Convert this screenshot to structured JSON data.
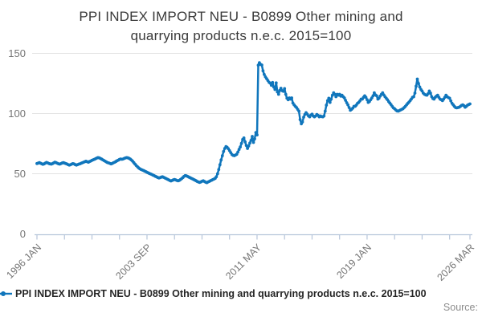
{
  "title": {
    "line1": "PPI INDEX IMPORT NEU - B0899 Other mining and",
    "line2": "quarrying products n.e.c. 2015=100"
  },
  "legend": {
    "label": "PPI INDEX IMPORT NEU - B0899 Other mining and quarrying products n.e.c. 2015=100"
  },
  "source": {
    "label": "Source:"
  },
  "colors": {
    "line": "#1076bc",
    "axis": "#b6c5da",
    "grid": "#e3e3e3",
    "tick_text": "#757575",
    "title_text": "#3a3a3a",
    "legend_text": "#262626",
    "source_text": "#8c8c8c"
  },
  "chart_data": {
    "type": "line",
    "title": "PPI INDEX IMPORT NEU - B0899 Other mining and quarrying products n.e.c. 2015=100",
    "xlabel": "",
    "ylabel": "",
    "frequency": "monthly",
    "x_start": "1996 JAN",
    "x_end": "2026 MAR",
    "ylim": [
      0,
      150
    ],
    "y_ticks": [
      0,
      50,
      100,
      150
    ],
    "grid": "horizontal-only",
    "legend_position": "bottom-left",
    "x_tick_labels": [
      {
        "label": "1996 JAN",
        "month": 0
      },
      {
        "label": "2003 SEP",
        "month": 92
      },
      {
        "label": "2011 MAY",
        "month": 184
      },
      {
        "label": "2019 JAN",
        "month": 276
      },
      {
        "label": "2026 MAR",
        "month": 362
      }
    ],
    "minor_tick_months": [
      0,
      23,
      46,
      69,
      92,
      115,
      138,
      161,
      184,
      207,
      230,
      253,
      276,
      299,
      322,
      345,
      362
    ],
    "values": [
      58.5,
      58.8,
      59.2,
      58.7,
      58.3,
      57.9,
      58.2,
      58.8,
      59.4,
      59.0,
      58.5,
      58.2,
      58.0,
      58.4,
      59.0,
      59.6,
      59.2,
      58.7,
      58.3,
      58.0,
      58.4,
      58.9,
      59.3,
      58.9,
      58.5,
      58.1,
      57.6,
      57.2,
      57.5,
      58.0,
      58.4,
      58.1,
      57.6,
      57.2,
      57.6,
      58.0,
      58.3,
      58.7,
      59.1,
      59.6,
      60.0,
      60.4,
      60.0,
      59.6,
      60.1,
      60.6,
      61.1,
      61.6,
      62.0,
      62.5,
      63.0,
      63.4,
      63.2,
      62.7,
      62.2,
      61.6,
      61.0,
      60.4,
      59.8,
      59.3,
      59.0,
      58.6,
      58.2,
      58.6,
      59.1,
      59.6,
      60.2,
      60.8,
      61.3,
      61.9,
      62.3,
      62.0,
      62.3,
      62.7,
      63.1,
      63.4,
      63.2,
      62.8,
      62.2,
      61.4,
      60.4,
      59.2,
      58.0,
      56.8,
      55.8,
      54.9,
      54.1,
      53.6,
      53.1,
      52.7,
      52.2,
      51.7,
      51.2,
      50.7,
      50.2,
      49.8,
      49.4,
      48.9,
      48.4,
      47.9,
      47.4,
      46.9,
      46.5,
      46.8,
      47.2,
      47.5,
      47.0,
      46.5,
      46.0,
      45.5,
      45.0,
      44.4,
      44.0,
      44.4,
      44.9,
      45.3,
      44.9,
      44.4,
      44.1,
      44.5,
      45.2,
      46.0,
      46.9,
      47.8,
      48.5,
      48.2,
      47.7,
      47.2,
      46.7,
      46.2,
      45.7,
      45.2,
      44.7,
      44.2,
      43.6,
      43.1,
      42.8,
      43.2,
      43.7,
      44.1,
      43.6,
      43.0,
      42.6,
      43.1,
      43.6,
      44.1,
      44.6,
      45.1,
      45.6,
      46.2,
      47.5,
      50.0,
      53.5,
      57.5,
      61.5,
      65.0,
      68.5,
      71.0,
      72.6,
      72.0,
      70.8,
      69.3,
      67.6,
      66.0,
      65.3,
      65.0,
      65.6,
      66.2,
      68.0,
      70.2,
      72.3,
      75.2,
      78.5,
      79.7,
      76.5,
      73.5,
      71.0,
      73.0,
      75.5,
      77.7,
      81.0,
      76.0,
      79.0,
      84.3,
      82.3,
      140.2,
      142.2,
      140.8,
      140.3,
      135.5,
      132.5,
      130.5,
      129.0,
      127.5,
      126.0,
      125.3,
      123.5,
      125.8,
      122.0,
      120.0,
      125.5,
      118.0,
      116.0,
      119.3,
      121.0,
      119.0,
      118.5,
      120.7,
      116.0,
      112.7,
      111.5,
      113.0,
      112.0,
      113.0,
      108.7,
      107.3,
      106.0,
      105.0,
      103.5,
      102.0,
      95.0,
      91.5,
      93.0,
      97.0,
      99.3,
      100.7,
      99.5,
      98.0,
      97.3,
      98.7,
      99.5,
      98.0,
      97.3,
      98.0,
      99.3,
      98.5,
      97.3,
      98.0,
      97.5,
      97.3,
      98.0,
      102.0,
      107.0,
      110.7,
      112.7,
      109.3,
      112.0,
      115.3,
      117.3,
      116.0,
      114.0,
      116.0,
      115.3,
      116.0,
      114.5,
      115.3,
      114.0,
      113.0,
      111.0,
      109.0,
      107.3,
      105.0,
      102.7,
      103.5,
      104.5,
      106.0,
      106.0,
      107.0,
      108.5,
      109.3,
      110.5,
      112.0,
      112.0,
      113.5,
      114.7,
      113.5,
      111.5,
      109.3,
      110.0,
      111.5,
      113.0,
      114.7,
      117.3,
      115.5,
      114.7,
      112.0,
      112.7,
      114.5,
      116.0,
      117.3,
      115.5,
      114.0,
      112.7,
      111.5,
      110.0,
      108.7,
      107.5,
      106.0,
      104.7,
      104.0,
      103.0,
      102.2,
      102.0,
      102.5,
      103.0,
      103.5,
      104.0,
      105.0,
      106.0,
      107.3,
      108.5,
      109.5,
      110.7,
      112.0,
      113.5,
      114.0,
      117.0,
      122.7,
      128.7,
      125.0,
      122.0,
      120.0,
      118.7,
      117.0,
      116.0,
      115.5,
      115.3,
      116.5,
      118.7,
      117.0,
      114.0,
      112.5,
      112.0,
      113.5,
      114.5,
      115.3,
      113.5,
      112.0,
      111.5,
      110.7,
      112.0,
      113.5,
      115.3,
      114.0,
      113.3,
      112.7,
      110.5,
      108.5,
      107.3,
      106.0,
      105.0,
      104.7,
      105.0,
      105.3,
      106.0,
      106.8,
      107.3,
      106.5,
      105.3,
      106.0,
      107.0,
      107.5,
      108.0
    ]
  }
}
